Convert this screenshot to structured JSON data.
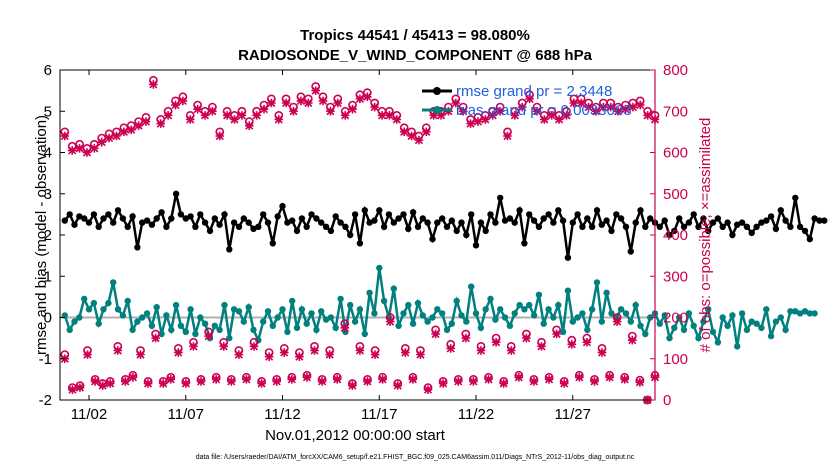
{
  "chart_data": {
    "type": "line",
    "title": "Tropics 44541 / 45413 = 98.080%",
    "subtitle": "RADIOSONDE_V_WIND_COMPONENT @ 688 hPa",
    "xlabel": "Nov.01,2012 00:00:00 start",
    "ylabel": "rmse and bias (model - observation)",
    "y2label": "# of obs: o=possible; ×=assimilated",
    "ylim": [
      -2,
      6
    ],
    "y2lim": [
      0,
      800
    ],
    "xlim": [
      0.5,
      31.25
    ],
    "yticks": [
      "-2",
      "-1",
      "0",
      "1",
      "2",
      "3",
      "4",
      "5",
      "6"
    ],
    "y2ticks": [
      "0",
      "100",
      "200",
      "300",
      "400",
      "500",
      "600",
      "700",
      "800"
    ],
    "xticks": [
      {
        "day": 2,
        "label": "11/02"
      },
      {
        "day": 7,
        "label": "11/07"
      },
      {
        "day": 12,
        "label": "11/12"
      },
      {
        "day": 17,
        "label": "11/17"
      },
      {
        "day": 22,
        "label": "11/22"
      },
      {
        "day": 27,
        "label": "11/27"
      }
    ],
    "legend": [
      {
        "label": "rmse grand pr = 2.3448",
        "color": "#000000"
      },
      {
        "label": "bias grand pr = 0.0033003",
        "color": "#00807f"
      }
    ],
    "footer": "data file: /Users/raeder/DAI/ATM_forcXX/CAM6_setup/f.e21.FHIST_BGC.f09_025.CAM6assim.011/Diags_NTrS_2012-11/obs_diag_output.nc",
    "x_start": 0.75,
    "x_step": 0.25,
    "series": [
      {
        "name": "rmse",
        "color": "#000000",
        "values": [
          2.35,
          2.5,
          2.25,
          2.45,
          2.4,
          2.3,
          2.5,
          2.2,
          2.4,
          2.5,
          2.3,
          2.6,
          2.4,
          2.2,
          2.45,
          1.7,
          2.3,
          2.35,
          2.25,
          2.4,
          2.55,
          2.2,
          2.4,
          3.0,
          2.5,
          2.4,
          2.45,
          2.2,
          2.5,
          2.3,
          2.1,
          2.4,
          2.25,
          2.5,
          1.65,
          2.3,
          2.2,
          2.4,
          2.3,
          2.15,
          2.2,
          2.5,
          2.3,
          1.8,
          2.45,
          2.7,
          2.3,
          2.35,
          2.1,
          2.4,
          2.2,
          2.5,
          2.4,
          2.3,
          2.2,
          2.1,
          2.45,
          2.3,
          2.2,
          2.0,
          2.5,
          1.8,
          2.6,
          2.3,
          2.35,
          2.6,
          2.2,
          2.5,
          2.3,
          2.4,
          2.5,
          2.15,
          2.55,
          2.2,
          2.4,
          2.3,
          1.9,
          2.3,
          2.4,
          2.2,
          2.35,
          2.1,
          2.3,
          2.0,
          2.5,
          1.75,
          2.3,
          2.1,
          2.5,
          2.3,
          2.9,
          2.35,
          2.4,
          2.3,
          2.6,
          1.8,
          2.5,
          2.35,
          2.2,
          2.4,
          2.5,
          2.3,
          2.6,
          2.35,
          1.45,
          2.3,
          2.5,
          2.2,
          2.4,
          2.2,
          2.6,
          2.25,
          2.35,
          2.1,
          2.5,
          2.4,
          2.2,
          1.6,
          2.3,
          2.6,
          2.2,
          2.4,
          2.3,
          2.2,
          2.35,
          2.0,
          2.1,
          2.4,
          2.2,
          2.3,
          2.5,
          2.2,
          2.4,
          2.1,
          2.3,
          2.4,
          2.2,
          2.3,
          2.0,
          2.25,
          2.3,
          2.2,
          2.05,
          2.2,
          2.3,
          2.35,
          2.45,
          2.15,
          2.6,
          2.35,
          2.2,
          2.9,
          2.2,
          2.1,
          1.9,
          2.4,
          2.35,
          2.35
        ]
      },
      {
        "name": "bias",
        "color": "#00807f",
        "values": [
          0.05,
          -0.3,
          -0.1,
          0.0,
          0.45,
          0.2,
          0.35,
          -0.15,
          0.2,
          0.35,
          0.85,
          0.2,
          0.05,
          0.4,
          -0.3,
          -0.1,
          0.0,
          0.1,
          -0.2,
          0.25,
          -0.4,
          0.05,
          -0.3,
          0.3,
          -0.2,
          -0.35,
          0.2,
          -0.4,
          0.0,
          -0.15,
          -0.5,
          -0.2,
          -0.3,
          0.3,
          -0.5,
          0.2,
          0.15,
          -0.1,
          0.25,
          -0.3,
          -0.55,
          -0.1,
          0.15,
          -0.2,
          0.0,
          0.2,
          -0.35,
          0.4,
          -0.25,
          0.2,
          -0.15,
          0.1,
          -0.3,
          0.15,
          -0.05,
          0.0,
          -0.25,
          0.45,
          -0.35,
          0.3,
          -0.1,
          0.2,
          -0.4,
          0.6,
          0.1,
          1.2,
          0.4,
          0.0,
          0.7,
          -0.2,
          0.1,
          0.3,
          -0.15,
          0.35,
          0.05,
          -0.1,
          0.0,
          0.2,
          0.1,
          -0.3,
          -0.15,
          0.4,
          0.05,
          -0.1,
          0.75,
          0.1,
          -0.25,
          0.2,
          0.45,
          -0.05,
          0.2,
          0.0,
          -0.2,
          0.1,
          0.3,
          0.2,
          0.3,
          0.05,
          0.55,
          -0.15,
          0.2,
          0.0,
          0.3,
          -0.35,
          0.65,
          -0.1,
          0.0,
          0.1,
          -0.3,
          0.2,
          0.85,
          -0.1,
          0.6,
          0.1,
          0.0,
          0.2,
          0.1,
          -0.1,
          0.3,
          -0.2,
          -0.4,
          0.0,
          0.1,
          -0.15,
          0.05,
          -0.5,
          -0.25,
          0.0,
          -0.3,
          0.1,
          -0.2,
          -0.5,
          -0.1,
          0.2,
          -0.35,
          -0.6,
          0.0,
          -0.2,
          0.05,
          -0.7,
          0.1,
          -0.3,
          -0.1,
          -0.15,
          -0.25,
          0.2,
          -0.45,
          -0.1,
          0.0,
          -0.3,
          0.15,
          0.15,
          0.1,
          0.15,
          0.1,
          0.1
        ]
      },
      {
        "name": "obs possible",
        "color": "#cc0052",
        "marker": "o",
        "values": [
          650,
          615,
          620,
          610,
          620,
          635,
          645,
          650,
          660,
          665,
          675,
          685,
          775,
          680,
          700,
          725,
          735,
          690,
          715,
          700,
          710,
          650,
          700,
          690,
          700,
          675,
          700,
          715,
          730,
          690,
          730,
          710,
          735,
          730,
          760,
          735,
          710,
          730,
          700,
          715,
          740,
          745,
          720,
          700,
          700,
          690,
          660,
          650,
          640,
          660,
          700,
          700,
          710,
          730,
          710,
          680,
          685,
          690,
          700,
          710,
          650,
          700,
          720,
          740,
          710,
          690,
          700,
          690,
          700,
          730,
          730,
          720,
          710,
          720,
          720,
          710,
          715,
          720,
          725,
          700,
          690
        ]
      },
      {
        "name": "obs assimilated",
        "color": "#cc0052",
        "marker": "x",
        "values": [
          640,
          605,
          610,
          600,
          610,
          625,
          635,
          640,
          650,
          655,
          665,
          675,
          765,
          670,
          690,
          715,
          725,
          680,
          705,
          690,
          700,
          640,
          690,
          680,
          690,
          665,
          690,
          705,
          720,
          680,
          720,
          700,
          725,
          720,
          750,
          725,
          700,
          720,
          690,
          705,
          730,
          735,
          710,
          690,
          690,
          680,
          650,
          640,
          630,
          650,
          690,
          690,
          700,
          720,
          700,
          670,
          675,
          680,
          690,
          700,
          640,
          690,
          710,
          730,
          700,
          680,
          690,
          680,
          690,
          720,
          720,
          710,
          700,
          710,
          710,
          700,
          705,
          710,
          715,
          690,
          680
        ]
      },
      {
        "name": "obs possible low",
        "color": "#cc0052",
        "marker": "o",
        "values": [
          110,
          30,
          35,
          120,
          50,
          40,
          45,
          130,
          50,
          60,
          120,
          45,
          160,
          45,
          55,
          125,
          45,
          140,
          50,
          165,
          55,
          140,
          50,
          120,
          55,
          140,
          45,
          115,
          50,
          125,
          55,
          115,
          60,
          130,
          50,
          120,
          55,
          185,
          40,
          130,
          50,
          120,
          55,
          200,
          40,
          125,
          55,
          120,
          30,
          170,
          45,
          135,
          50,
          160,
          50,
          130,
          55,
          150,
          45,
          130,
          60,
          160,
          50,
          140,
          55,
          170,
          45,
          145,
          60,
          150,
          50,
          125,
          60,
          200,
          55,
          155,
          48,
          0,
          60
        ]
      },
      {
        "name": "obs assimilated low",
        "color": "#cc0052",
        "marker": "x",
        "values": [
          100,
          25,
          30,
          110,
          45,
          35,
          40,
          120,
          45,
          55,
          110,
          40,
          150,
          40,
          50,
          115,
          40,
          130,
          45,
          155,
          50,
          130,
          45,
          110,
          50,
          130,
          40,
          105,
          45,
          115,
          50,
          105,
          55,
          120,
          45,
          110,
          50,
          175,
          35,
          120,
          45,
          110,
          50,
          190,
          35,
          115,
          50,
          110,
          25,
          160,
          40,
          125,
          45,
          150,
          45,
          120,
          50,
          140,
          40,
          120,
          55,
          150,
          45,
          130,
          50,
          160,
          40,
          135,
          55,
          140,
          45,
          115,
          55,
          190,
          50,
          145,
          43,
          0,
          55
        ]
      }
    ]
  }
}
